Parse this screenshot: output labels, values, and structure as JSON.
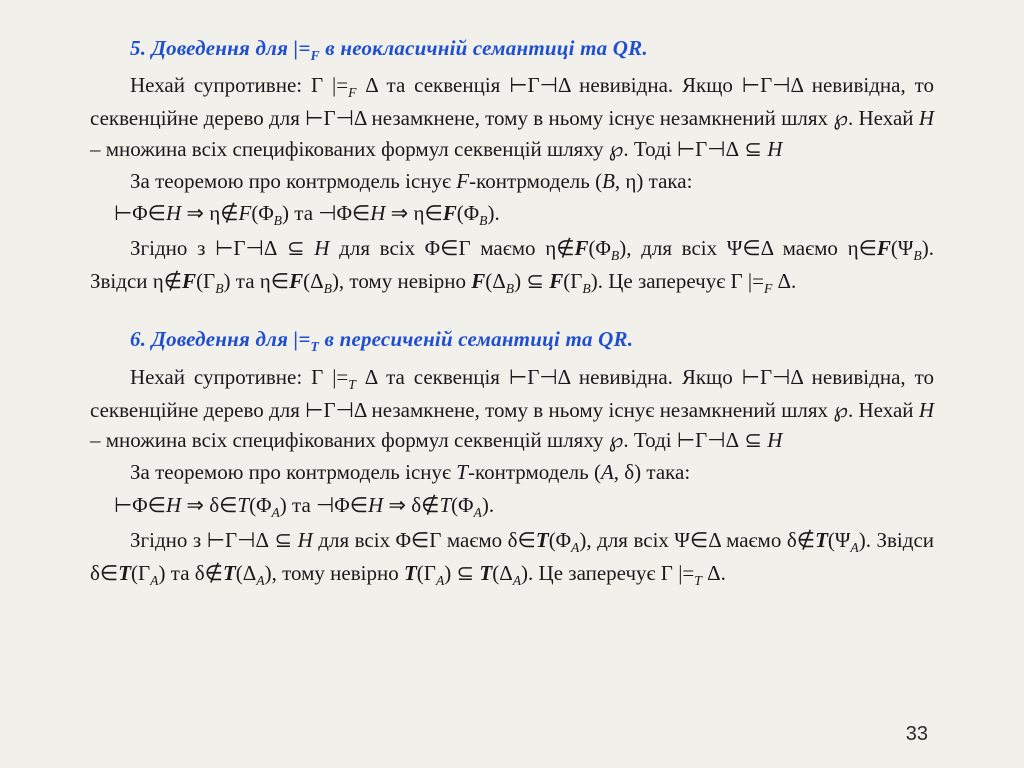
{
  "page_number": "33",
  "colors": {
    "background": "#f2f0eb",
    "text": "#1a1a1a",
    "heading": "#1f4fd1"
  },
  "typography": {
    "body_family": "Times New Roman",
    "body_size_pt": 16,
    "heading_size_pt": 16,
    "heading_style": "bold italic",
    "line_height": 1.45
  },
  "section5": {
    "heading": "5. Доведення для |=_F в неокласичній семантиці та QR.",
    "p1": "Нехай супротивне: Γ |=_F Δ та секвенція ⊢Γ⊣Δ невивідна. Якщо ⊢Γ⊣Δ невивідна, то секвенційне дерево для ⊢Γ⊣Δ незамкнене, тому в ньому існує незамкнений шлях ℘. Нехай H – множина всіх специфікованих формул секвенцій шляху ℘. Тоді ⊢Γ⊣Δ ⊆ H",
    "p2": "За теоремою про контрмодель існує F-контрмодель (B, η) така:",
    "f1": "⊢Φ∈H ⇒ η∉F(Φ_B) та ⊣Φ∈H ⇒ η∈F(Φ_B).",
    "p3": "Згідно з ⊢Γ⊣Δ ⊆ H для всіх Φ∈Γ маємо η∉F(Φ_B), для всіх Ψ∈Δ маємо η∈F(Ψ_B). Звідси η∉F(Γ_B) та η∈F(Δ_B), тому невірно F(Δ_B) ⊆ F(Γ_B). Це заперечує Γ |=_F Δ."
  },
  "section6": {
    "heading": "6. Доведення для |=_T в пересиченій семантиці та QR.",
    "p1": "Нехай супротивне: Γ |=_T Δ та секвенція ⊢Γ⊣Δ невивідна. Якщо ⊢Γ⊣Δ невивідна, то секвенційне дерево для ⊢Γ⊣Δ незамкнене, тому в ньому існує незамкнений шлях ℘. Нехай H – множина всіх специфікованих формул секвенцій шляху ℘. Тоді ⊢Γ⊣Δ ⊆ H",
    "p2": "За теоремою про контрмодель існує T-контрмодель (A, δ) така:",
    "f1": "⊢Φ∈H ⇒ δ∈T(Φ_A) та ⊣Φ∈H ⇒ δ∉T(Φ_A).",
    "p3": "Згідно з ⊢Γ⊣Δ ⊆ H для всіх Φ∈Γ маємо δ∈T(Φ_A), для всіх Ψ∈Δ маємо δ∉T(Ψ_A). Звідси δ∈T(Γ_A) та δ∉T(Δ_A), тому невірно T(Γ_A) ⊆ T(Δ_A). Це заперечує Γ |=_T Δ."
  }
}
